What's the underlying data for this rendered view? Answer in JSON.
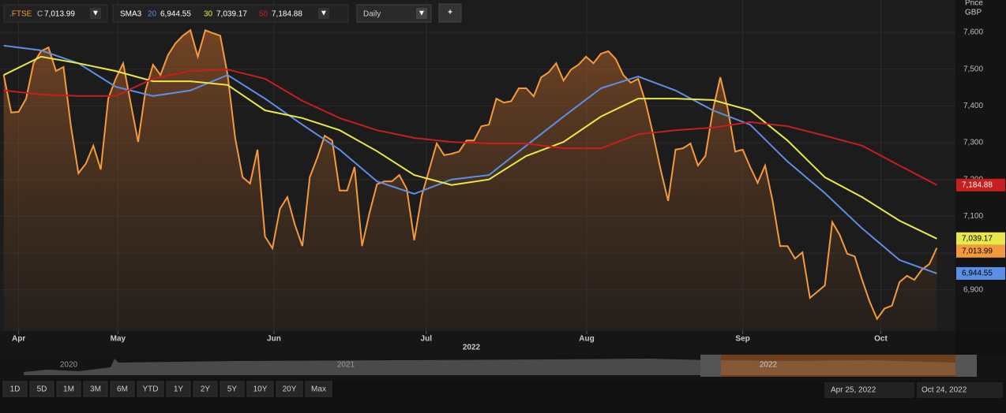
{
  "chart_data": {
    "type": "line",
    "toolbar": {
      "symbol": ".FTSE",
      "close_prefix": "C",
      "indicator": "SMA3",
      "interval": "Daily",
      "add": "+"
    },
    "axis_title": "Price",
    "currency": "GBP",
    "ylim": [
      6788,
      7688
    ],
    "yticks": [
      {
        "value": 6900,
        "label": "6,900"
      },
      {
        "value": 7000,
        "label": "7,000"
      },
      {
        "value": 7100,
        "label": "7,100"
      },
      {
        "value": 7200,
        "label": "7,200"
      },
      {
        "value": 7300,
        "label": "7,300"
      },
      {
        "value": 7400,
        "label": "7,400"
      },
      {
        "value": 7500,
        "label": "7,500"
      },
      {
        "value": 7600,
        "label": "7,600"
      }
    ],
    "xlim": [
      -0.5,
      127.5
    ],
    "xticks": [
      {
        "value": 2,
        "label": "Apr"
      },
      {
        "value": 15.3,
        "label": "May"
      },
      {
        "value": 36.2,
        "label": "Jun"
      },
      {
        "value": 56.6,
        "label": "Jul"
      },
      {
        "value": 78.1,
        "label": "Aug"
      },
      {
        "value": 99,
        "label": "Sep"
      },
      {
        "value": 117.5,
        "label": "Oct"
      }
    ],
    "year_label": "2022",
    "grid": true,
    "series": [
      {
        "name": ".FTSE",
        "color": "#f59a3c",
        "area": true,
        "last_label": "7,013.99",
        "values": [
          7484,
          7382,
          7384,
          7420,
          7516,
          7549,
          7559,
          7495,
          7506,
          7345,
          7217,
          7243,
          7292,
          7227,
          7420,
          7474,
          7516,
          7409,
          7302,
          7442,
          7512,
          7484,
          7538,
          7570,
          7591,
          7606,
          7534,
          7606,
          7598,
          7591,
          7484,
          7313,
          7206,
          7189,
          7281,
          7045,
          7013,
          7120,
          7152,
          7077,
          7019,
          7206,
          7259,
          7319,
          7306,
          7170,
          7170,
          7234,
          7019,
          7109,
          7187,
          7195,
          7195,
          7212,
          7174,
          7035,
          7156,
          7227,
          7298,
          7266,
          7270,
          7276,
          7306,
          7306,
          7345,
          7349,
          7420,
          7409,
          7413,
          7448,
          7448,
          7426,
          7478,
          7491,
          7516,
          7469,
          7499,
          7512,
          7534,
          7516,
          7542,
          7549,
          7527,
          7484,
          7463,
          7474,
          7409,
          7323,
          7227,
          7142,
          7281,
          7285,
          7298,
          7238,
          7264,
          7388,
          7478,
          7392,
          7276,
          7281,
          7234,
          7191,
          7238,
          7142,
          7019,
          7019,
          6985,
          7002,
          6878,
          6895,
          6912,
          7084,
          7049,
          6998,
          6991,
          6927,
          6868,
          6821,
          6849,
          6857,
          6921,
          6938,
          6927,
          6955,
          6970,
          7013.99
        ]
      },
      {
        "name": "20",
        "color": "#5b8fe6",
        "last_label": "6,944.55",
        "x": [
          0,
          5,
          10,
          15,
          20,
          25,
          30,
          35,
          40,
          45,
          50,
          55,
          60,
          65,
          70,
          75,
          80,
          85,
          90,
          95,
          100,
          105,
          110,
          115,
          120,
          125
        ],
        "values": [
          7564,
          7551,
          7516,
          7452,
          7427,
          7442,
          7484,
          7420,
          7349,
          7281,
          7195,
          7161,
          7200,
          7212,
          7292,
          7371,
          7448,
          7480,
          7442,
          7388,
          7349,
          7249,
          7163,
          7067,
          6981,
          6944.55
        ]
      },
      {
        "name": "30",
        "color": "#e8e84a",
        "last_label": "7,039.17",
        "x": [
          0,
          5,
          10,
          15,
          20,
          25,
          30,
          35,
          40,
          45,
          50,
          55,
          60,
          65,
          70,
          75,
          80,
          85,
          90,
          95,
          100,
          105,
          110,
          115,
          120,
          125
        ],
        "values": [
          7484,
          7534,
          7516,
          7495,
          7467,
          7467,
          7457,
          7388,
          7367,
          7334,
          7277,
          7212,
          7185,
          7200,
          7264,
          7302,
          7371,
          7420,
          7420,
          7416,
          7388,
          7306,
          7206,
          7152,
          7088,
          7039.17
        ]
      },
      {
        "name": "50",
        "color": "#c81e1e",
        "last_label": "7,184.88",
        "x": [
          0,
          5,
          10,
          15,
          20,
          25,
          30,
          35,
          40,
          45,
          50,
          55,
          60,
          65,
          70,
          75,
          80,
          85,
          90,
          95,
          100,
          105,
          110,
          115,
          120,
          125
        ],
        "values": [
          7442,
          7431,
          7427,
          7427,
          7474,
          7495,
          7499,
          7474,
          7414,
          7367,
          7334,
          7313,
          7302,
          7298,
          7298,
          7285,
          7285,
          7323,
          7334,
          7341,
          7356,
          7345,
          7319,
          7292,
          7238,
          7184.88
        ]
      }
    ],
    "navigator": {
      "years": [
        "2020",
        "2021",
        "2022"
      ]
    },
    "ranges": [
      "1D",
      "5D",
      "1M",
      "3M",
      "6M",
      "YTD",
      "1Y",
      "2Y",
      "5Y",
      "10Y",
      "20Y",
      "Max"
    ],
    "date_from": "Apr 25, 2022",
    "date_to": "Oct 24, 2022"
  }
}
